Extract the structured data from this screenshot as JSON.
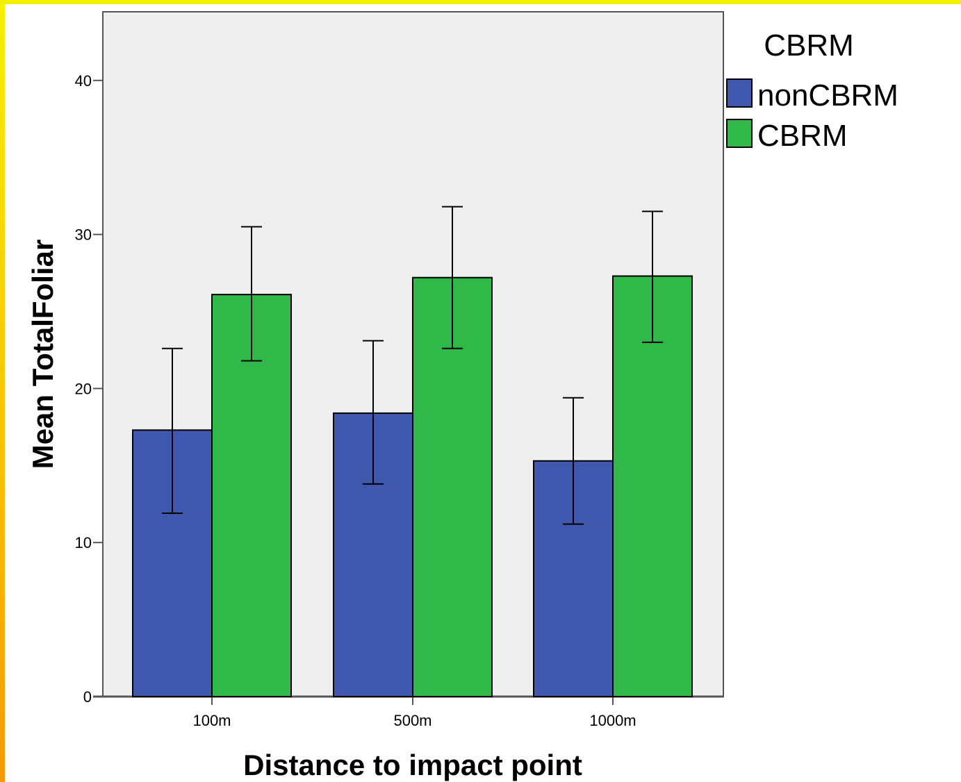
{
  "chart_data": {
    "type": "bar",
    "title": "",
    "xlabel": "Distance to impact point",
    "ylabel": "Mean TotalFoliar",
    "categories": [
      "100m",
      "500m",
      "1000m"
    ],
    "ylim": [
      0,
      44
    ],
    "yticks": [
      0,
      10,
      20,
      30,
      40
    ],
    "grid": false,
    "legend": {
      "title": "CBRM",
      "position": "right"
    },
    "series": [
      {
        "name": "nonCBRM",
        "color": "#3f57ac",
        "values": [
          17.3,
          18.4,
          15.3
        ],
        "error_low": [
          11.9,
          13.8,
          11.2
        ],
        "error_high": [
          22.6,
          23.1,
          19.4
        ]
      },
      {
        "name": "CBRM",
        "color": "#30b848",
        "values": [
          26.1,
          27.2,
          27.3
        ],
        "error_low": [
          21.8,
          22.6,
          23.0
        ],
        "error_high": [
          30.5,
          31.8,
          31.5
        ]
      }
    ],
    "colors": {
      "plot_background": "#efefef",
      "bar_outline": "#000000"
    }
  }
}
